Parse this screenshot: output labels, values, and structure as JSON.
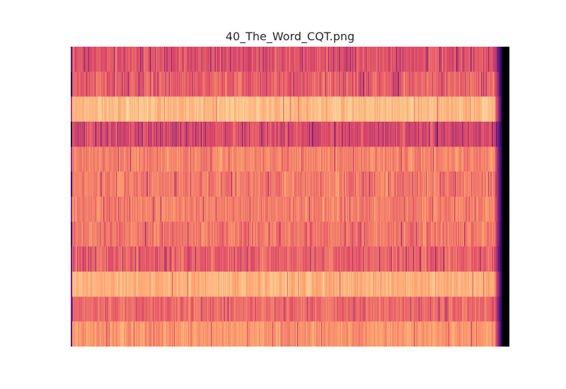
{
  "title": "40_The_Word_CQT.png",
  "chart_data": {
    "type": "heatmap",
    "title": "40_The_Word_CQT.png",
    "xlabel": "",
    "ylabel": "",
    "axes_visible": false,
    "grid": false,
    "legend": "none",
    "colormap": "magma",
    "colormap_stops": [
      "#000004",
      "#3b0f70",
      "#8c2981",
      "#de4968",
      "#fe9f6d",
      "#fcfdbf"
    ],
    "n_rows": 12,
    "n_columns": 620,
    "row_profiles": [
      {
        "row": 1,
        "mean": 0.62,
        "variation": 0.1,
        "dark_line_density": 0.09
      },
      {
        "row": 2,
        "mean": 0.66,
        "variation": 0.09,
        "dark_line_density": 0.07
      },
      {
        "row": 3,
        "mean": 0.86,
        "variation": 0.06,
        "dark_line_density": 0.01
      },
      {
        "row": 4,
        "mean": 0.6,
        "variation": 0.1,
        "dark_line_density": 0.1
      },
      {
        "row": 5,
        "mean": 0.74,
        "variation": 0.08,
        "dark_line_density": 0.03
      },
      {
        "row": 6,
        "mean": 0.72,
        "variation": 0.08,
        "dark_line_density": 0.03
      },
      {
        "row": 7,
        "mean": 0.73,
        "variation": 0.08,
        "dark_line_density": 0.03
      },
      {
        "row": 8,
        "mean": 0.71,
        "variation": 0.09,
        "dark_line_density": 0.04
      },
      {
        "row": 9,
        "mean": 0.66,
        "variation": 0.09,
        "dark_line_density": 0.07
      },
      {
        "row": 10,
        "mean": 0.84,
        "variation": 0.06,
        "dark_line_density": 0.01
      },
      {
        "row": 11,
        "mean": 0.68,
        "variation": 0.08,
        "dark_line_density": 0.05
      },
      {
        "row": 12,
        "mean": 0.78,
        "variation": 0.07,
        "dark_line_density": 0.02
      }
    ],
    "fade_out_start_fraction": 0.965,
    "silent_tail_start_fraction": 0.985,
    "silent_tail_value": 0.0
  }
}
